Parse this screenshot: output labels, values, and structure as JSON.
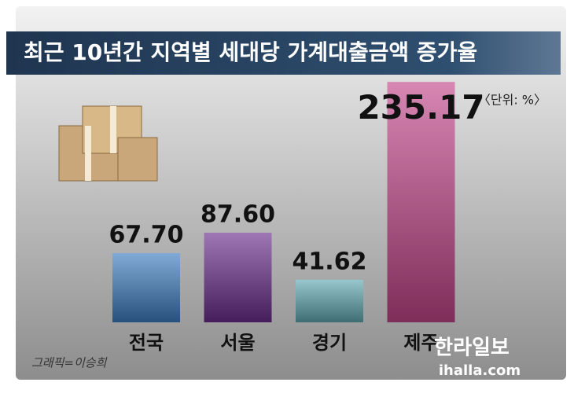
{
  "chart_data": {
    "type": "bar",
    "title": "최근 10년간 지역별 세대당 가계대출금액 증가율",
    "unit_label": "〈단위: %〉",
    "categories": [
      "전국",
      "서울",
      "경기",
      "제주"
    ],
    "values": [
      67.7,
      87.6,
      41.62,
      235.17
    ],
    "value_labels": [
      "67.70",
      "87.60",
      "41.62",
      "235.17"
    ],
    "colors": [
      "#3d7dbf",
      "#6b2d8c",
      "#5fa9b2",
      "#c2468a"
    ],
    "credit": "그래픽=이승희",
    "logo": "한라일보",
    "logo_url": "ihalla.com"
  }
}
